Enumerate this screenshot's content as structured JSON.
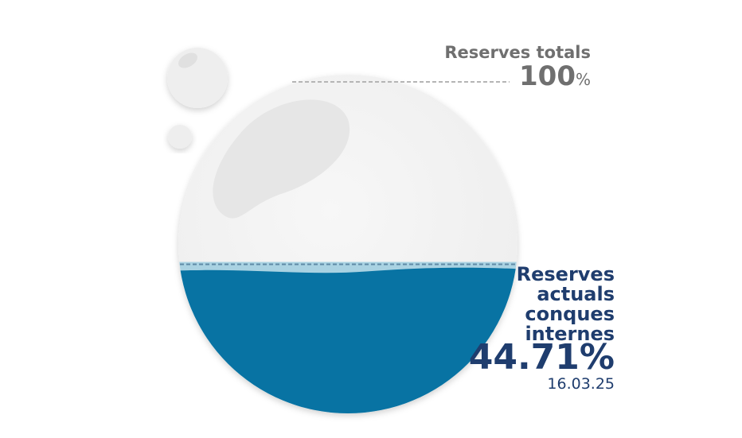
{
  "chart_data": {
    "type": "liquid-fill",
    "max_label": "Reserves totals",
    "max": 100,
    "max_unit": "%",
    "label": "Reserves actuals conques internes",
    "value": 44.71,
    "value_label": "44.71%",
    "date": "16.03.25",
    "color": "#0873a3"
  }
}
